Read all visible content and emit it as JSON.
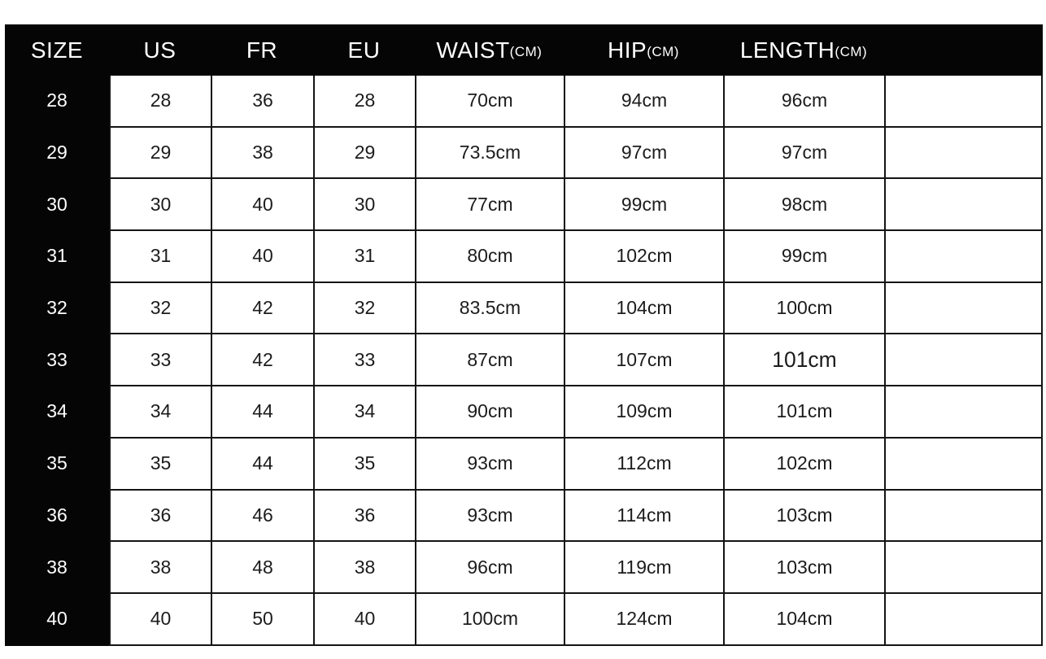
{
  "colors": {
    "header_background": "#050505",
    "header_text": "#ffffff",
    "cell_background": "#ffffff",
    "cell_text": "#1c1c1c",
    "grid_border": "#141414"
  },
  "chart_data": {
    "type": "table",
    "columns": [
      {
        "key": "size",
        "label": "SIZE",
        "unit": ""
      },
      {
        "key": "us",
        "label": "US",
        "unit": ""
      },
      {
        "key": "fr",
        "label": "FR",
        "unit": ""
      },
      {
        "key": "eu",
        "label": "EU",
        "unit": ""
      },
      {
        "key": "waist",
        "label": "WAIST",
        "unit": "(CM)"
      },
      {
        "key": "hip",
        "label": "HIP",
        "unit": "(CM)"
      },
      {
        "key": "length",
        "label": "LENGTH",
        "unit": "(CM)"
      },
      {
        "key": "extra",
        "label": "",
        "unit": ""
      }
    ],
    "rows": [
      [
        "28",
        "28",
        "36",
        "28",
        "70cm",
        "94cm",
        "96cm",
        ""
      ],
      [
        "29",
        "29",
        "38",
        "29",
        "73.5cm",
        "97cm",
        "97cm",
        ""
      ],
      [
        "30",
        "30",
        "40",
        "30",
        "77cm",
        "99cm",
        "98cm",
        ""
      ],
      [
        "31",
        "31",
        "40",
        "31",
        "80cm",
        "102cm",
        "99cm",
        ""
      ],
      [
        "32",
        "32",
        "42",
        "32",
        "83.5cm",
        "104cm",
        "100cm",
        ""
      ],
      [
        "33",
        "33",
        "42",
        "33",
        "87cm",
        "107cm",
        "101cm",
        ""
      ],
      [
        "34",
        "34",
        "44",
        "34",
        "90cm",
        "109cm",
        "101cm",
        ""
      ],
      [
        "35",
        "35",
        "44",
        "35",
        "93cm",
        "112cm",
        "102cm",
        ""
      ],
      [
        "36",
        "36",
        "46",
        "36",
        "93cm",
        "114cm",
        "103cm",
        ""
      ],
      [
        "38",
        "38",
        "48",
        "38",
        "96cm",
        "119cm",
        "103cm",
        ""
      ],
      [
        "40",
        "40",
        "50",
        "40",
        "100cm",
        "124cm",
        "104cm",
        ""
      ]
    ],
    "emphasis_cell": {
      "row_index": 5,
      "col_index": 6
    },
    "layout": {
      "grid": "on",
      "header_position": "top",
      "row_label_column": "SIZE"
    }
  }
}
